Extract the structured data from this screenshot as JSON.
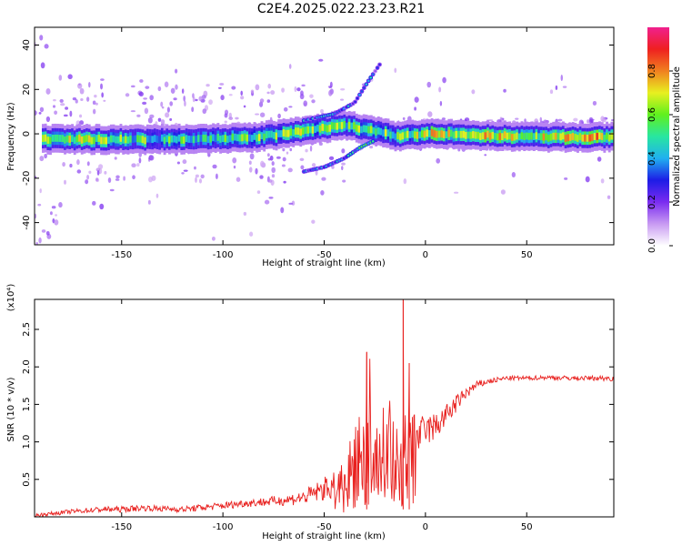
{
  "title": "C2E4.2025.022.23.23.R21",
  "colors": {
    "background": "#ffffff",
    "frame": "#000000",
    "snr_line": "#e8201e",
    "spectrum_palette": [
      "#e9c8f5",
      "#c79af0",
      "#9a4cf0",
      "#5a1ee8",
      "#1d1ce6",
      "#1f8ff0",
      "#24e0e8",
      "#2de88a",
      "#7ef01e",
      "#dcf020",
      "#f0a020",
      "#ef2020",
      "#f0208e"
    ]
  },
  "chart_data": [
    {
      "type": "heatmap",
      "title": "",
      "xlabel": "Height of straight line (km)",
      "ylabel": "Frequency (Hz)",
      "xlim": [
        -193,
        93
      ],
      "ylim": [
        -50,
        48
      ],
      "xticks": [
        -150,
        -100,
        -50,
        0,
        50
      ],
      "xtick_labels": [
        "-150",
        "-100",
        "-50",
        "0",
        "50"
      ],
      "yticks": [
        40,
        20,
        0,
        -20,
        -40
      ],
      "ytick_labels": [
        "40",
        "20",
        "0",
        "-20",
        "-40"
      ],
      "colorbar": {
        "label": "Normalized spectral amplitude",
        "range": [
          0,
          1
        ],
        "ticks": [
          0.0,
          0.2,
          0.4,
          0.6,
          0.8
        ],
        "tick_labels": [
          "0.0",
          "0.2",
          "0.4",
          "0.6",
          "0.8"
        ],
        "colors": [
          "#ffffff",
          "#c89af2",
          "#7a2cf0",
          "#1d1ce6",
          "#20b0f0",
          "#28e6a0",
          "#60f01e",
          "#e8f020",
          "#f08020",
          "#ef2020",
          "#f0208e"
        ]
      },
      "main_band": [
        {
          "x": -190,
          "y": -2.5,
          "intensity": 0.5
        },
        {
          "x": -170,
          "y": -2.5,
          "intensity": 0.65
        },
        {
          "x": -150,
          "y": -2.5,
          "intensity": 0.5
        },
        {
          "x": -130,
          "y": -2.5,
          "intensity": 0.45
        },
        {
          "x": -110,
          "y": -2,
          "intensity": 0.5
        },
        {
          "x": -90,
          "y": -2,
          "intensity": 0.5
        },
        {
          "x": -70,
          "y": 0,
          "intensity": 0.55
        },
        {
          "x": -55,
          "y": 2,
          "intensity": 0.55
        },
        {
          "x": -40,
          "y": 4,
          "intensity": 0.5
        },
        {
          "x": -30,
          "y": 2,
          "intensity": 0.5
        },
        {
          "x": -15,
          "y": -1,
          "intensity": 0.5
        },
        {
          "x": 0,
          "y": 0,
          "intensity": 0.6
        },
        {
          "x": 20,
          "y": -0.5,
          "intensity": 0.65
        },
        {
          "x": 40,
          "y": -1,
          "intensity": 0.6
        },
        {
          "x": 60,
          "y": -1.5,
          "intensity": 0.6
        },
        {
          "x": 80,
          "y": -1.5,
          "intensity": 0.75
        },
        {
          "x": 92,
          "y": -1.5,
          "intensity": 0.6
        }
      ],
      "upper_branch": [
        {
          "x": -60,
          "y": 6,
          "intensity": 0.3
        },
        {
          "x": -45,
          "y": 9,
          "intensity": 0.3
        },
        {
          "x": -35,
          "y": 14,
          "intensity": 0.3
        },
        {
          "x": -28,
          "y": 24,
          "intensity": 0.35
        },
        {
          "x": -22,
          "y": 32,
          "intensity": 0.15
        }
      ],
      "lower_branch": [
        {
          "x": -60,
          "y": -17,
          "intensity": 0.25
        },
        {
          "x": -50,
          "y": -15,
          "intensity": 0.3
        },
        {
          "x": -40,
          "y": -11,
          "intensity": 0.35
        },
        {
          "x": -32,
          "y": -6,
          "intensity": 0.4
        },
        {
          "x": -25,
          "y": -3,
          "intensity": 0.45
        }
      ]
    },
    {
      "type": "line",
      "title": "",
      "xlabel": "Height of straight line (km)",
      "ylabel": "SNR (10 * v/v)",
      "y_multiplier": "(x10⁴)",
      "xlim": [
        -193,
        93
      ],
      "ylim": [
        0,
        2.9
      ],
      "xticks": [
        -150,
        -100,
        -50,
        0,
        50
      ],
      "xtick_labels": [
        "-150",
        "-100",
        "-50",
        "0",
        "50"
      ],
      "yticks": [
        0.5,
        1.0,
        1.5,
        2.0,
        2.5
      ],
      "ytick_labels": [
        "0.5",
        "1.0",
        "1.5",
        "2.0",
        "2.5"
      ],
      "series": [
        {
          "color": "#e8201e",
          "x": [
            -193,
            -175,
            -160,
            -150,
            -140,
            -120,
            -100,
            -90,
            -80,
            -70,
            -60,
            -52,
            -45,
            -40,
            -36,
            -33,
            -30,
            -28,
            -25,
            -22,
            -19,
            -16,
            -13,
            -11,
            -9,
            -7,
            -5,
            -3,
            0,
            5,
            10,
            15,
            20,
            25,
            30,
            40,
            50,
            60,
            70,
            80,
            92
          ],
          "y": [
            0.02,
            0.07,
            0.1,
            0.1,
            0.12,
            0.1,
            0.15,
            0.18,
            0.2,
            0.22,
            0.26,
            0.35,
            0.42,
            0.55,
            0.8,
            1.0,
            1.1,
            0.95,
            0.9,
            1.05,
            1.0,
            0.95,
            1.05,
            1.1,
            1.25,
            1.0,
            1.0,
            1.1,
            1.15,
            1.2,
            1.35,
            1.5,
            1.65,
            1.75,
            1.8,
            1.85,
            1.85,
            1.86,
            1.85,
            1.85,
            1.85
          ],
          "spread": [
            0.02,
            0.03,
            0.04,
            0.04,
            0.04,
            0.04,
            0.05,
            0.05,
            0.06,
            0.07,
            0.1,
            0.14,
            0.2,
            0.3,
            0.6,
            0.7,
            1.0,
            0.8,
            0.7,
            0.9,
            0.8,
            0.7,
            0.9,
            1.0,
            1.3,
            0.9,
            0.3,
            0.25,
            0.2,
            0.2,
            0.15,
            0.12,
            0.08,
            0.06,
            0.04,
            0.03,
            0.03,
            0.03,
            0.03,
            0.03,
            0.04
          ]
        }
      ],
      "peaks": [
        {
          "x": -11,
          "y": 2.9
        },
        {
          "x": -29,
          "y": 2.2
        },
        {
          "x": -8,
          "y": 2.05
        }
      ]
    }
  ]
}
